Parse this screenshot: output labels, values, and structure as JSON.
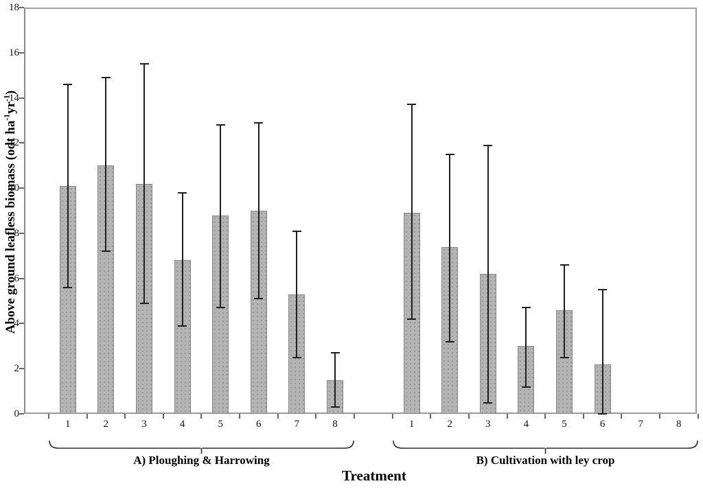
{
  "chart_data": {
    "type": "bar",
    "title": "",
    "xlabel": "Treatment",
    "ylabel": "Above ground leafless biomass (odt ha-1yr-1)",
    "ylabel_parts": [
      {
        "text": "Above ground leafless biomass (odt ha"
      },
      {
        "text": "-1",
        "sup": true
      },
      {
        "text": "yr"
      },
      {
        "text": "-1",
        "sup": true
      },
      {
        "text": ")"
      }
    ],
    "ylim": [
      0,
      18
    ],
    "yticks": [
      0,
      2,
      4,
      6,
      8,
      10,
      12,
      14,
      16,
      18
    ],
    "grid": false,
    "legend": "none",
    "bar_fill_color": "#b4b4b4",
    "bar_border_color": "#878787",
    "error_bar_color": "#1f1f1f",
    "frame_color": "#9b9b9b",
    "groups": [
      {
        "label": "A) Ploughing & Harrowing",
        "categories": [
          "1",
          "2",
          "3",
          "4",
          "5",
          "6",
          "7",
          "8"
        ],
        "values": [
          10.1,
          11.0,
          10.2,
          6.8,
          8.8,
          9.0,
          5.3,
          1.5
        ],
        "err_high": [
          14.6,
          14.9,
          15.5,
          9.8,
          12.8,
          12.9,
          8.1,
          2.7
        ],
        "err_low": [
          5.6,
          7.2,
          4.9,
          3.9,
          4.7,
          5.1,
          2.5,
          0.3
        ]
      },
      {
        "label": "B) Cultivation with ley crop",
        "categories": [
          "1",
          "2",
          "3",
          "4",
          "5",
          "6",
          "7",
          "8"
        ],
        "values": [
          8.9,
          7.4,
          6.2,
          3.0,
          4.6,
          2.2,
          null,
          null
        ],
        "err_high": [
          13.7,
          11.5,
          11.9,
          4.7,
          6.6,
          5.5,
          null,
          null
        ],
        "err_low": [
          4.2,
          3.2,
          0.5,
          1.2,
          2.5,
          0.0,
          null,
          null
        ]
      }
    ]
  }
}
